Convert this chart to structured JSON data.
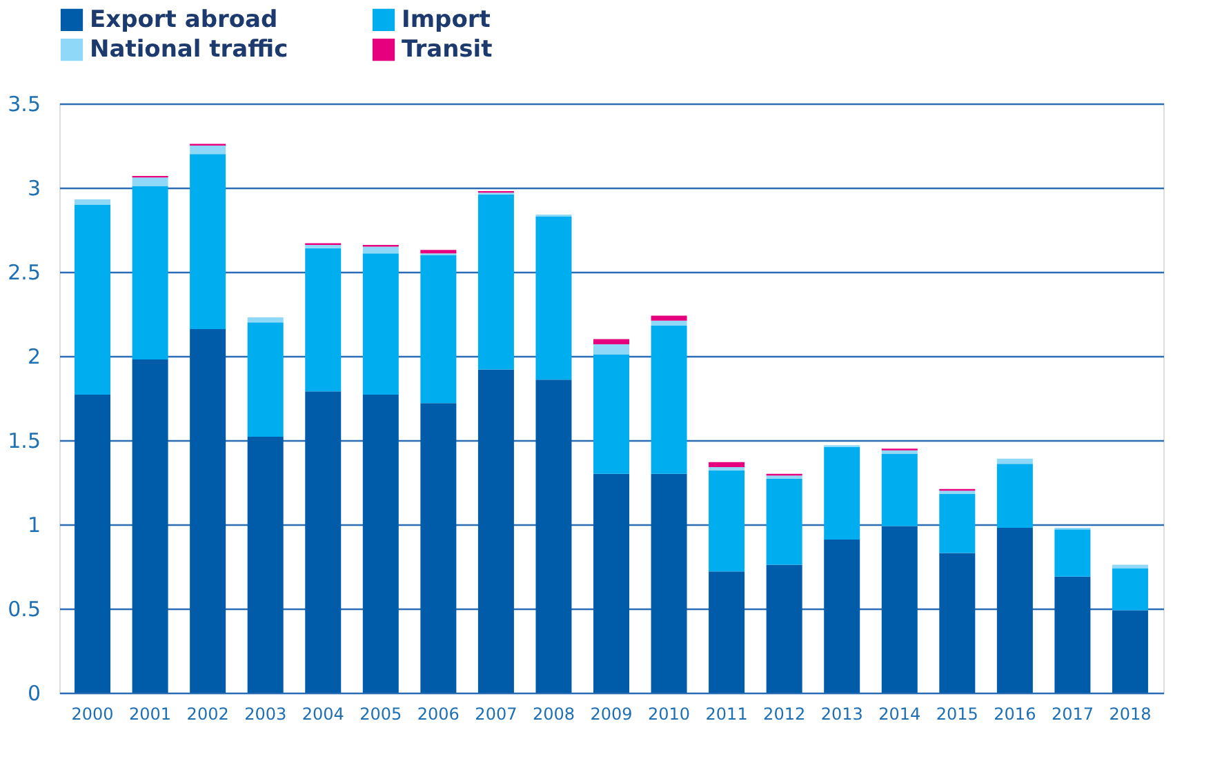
{
  "chart_data": {
    "type": "bar",
    "stacked": true,
    "legend": "top left",
    "grid": "y",
    "categories": [
      "2000",
      "2001",
      "2002",
      "2003",
      "2004",
      "2005",
      "2006",
      "2007",
      "2008",
      "2009",
      "2010",
      "2011",
      "2012",
      "2013",
      "2014",
      "2015",
      "2016",
      "2017",
      "2018"
    ],
    "ylim": [
      0,
      3.5
    ],
    "yticks": [
      0,
      0.5,
      1,
      1.5,
      2,
      2.5,
      3,
      3.5
    ],
    "series": [
      {
        "name": "Export abroad",
        "color": "#005ca9",
        "values": [
          1.77,
          1.98,
          2.16,
          1.52,
          1.79,
          1.77,
          1.72,
          1.92,
          1.86,
          1.3,
          1.3,
          0.72,
          0.76,
          0.91,
          0.99,
          0.83,
          0.98,
          0.69,
          0.49
        ]
      },
      {
        "name": "Import",
        "color": "#00adee",
        "values": [
          1.13,
          1.03,
          1.04,
          0.68,
          0.85,
          0.84,
          0.88,
          1.04,
          0.97,
          0.71,
          0.88,
          0.6,
          0.51,
          0.55,
          0.43,
          0.35,
          0.38,
          0.28,
          0.25
        ]
      },
      {
        "name": "National traffic",
        "color": "#8fd8f8",
        "values": [
          0.03,
          0.05,
          0.05,
          0.03,
          0.02,
          0.04,
          0.01,
          0.01,
          0.01,
          0.06,
          0.03,
          0.02,
          0.02,
          0.01,
          0.02,
          0.02,
          0.03,
          0.01,
          0.02
        ]
      },
      {
        "name": "Transit",
        "color": "#e6007e",
        "values": [
          0,
          0.01,
          0.01,
          0,
          0.01,
          0.01,
          0.02,
          0.01,
          0,
          0.03,
          0.03,
          0.03,
          0.01,
          0,
          0.01,
          0.01,
          0,
          0,
          0
        ]
      }
    ]
  }
}
